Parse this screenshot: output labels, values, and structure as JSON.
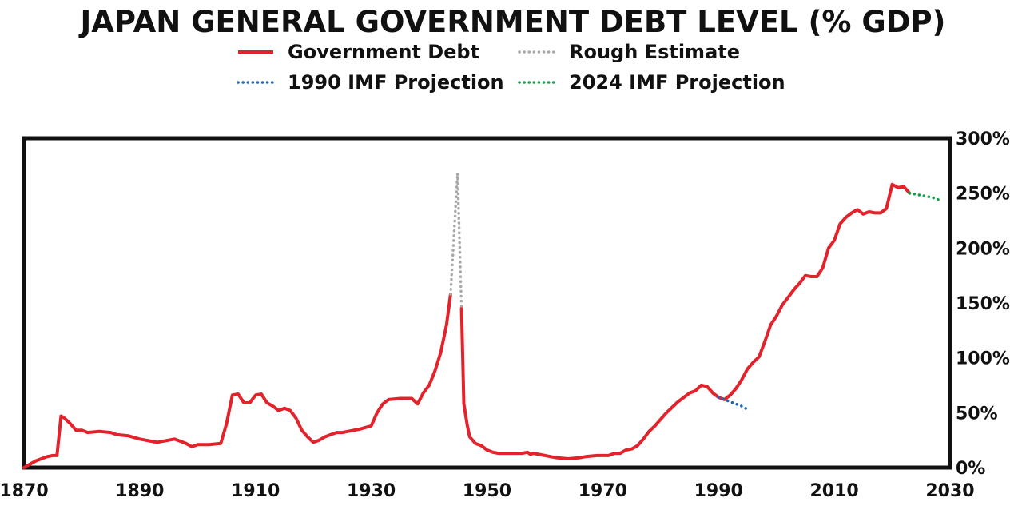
{
  "chart_data": {
    "type": "line",
    "title": "JAPAN GENERAL GOVERNMENT DEBT LEVEL (% GDP)",
    "xlabel": "",
    "ylabel": "",
    "xlim": [
      1870,
      2030
    ],
    "ylim": [
      0,
      300
    ],
    "x_ticks": [
      "1870",
      "1890",
      "1910",
      "1930",
      "1950",
      "1970",
      "1990",
      "2010",
      "2030"
    ],
    "y_ticks": [
      "0%",
      "50%",
      "100%",
      "150%",
      "200%",
      "250%",
      "300%"
    ],
    "y_axis_position": "right",
    "grid": false,
    "legend": [
      {
        "name": "Government Debt",
        "color": "#e3232c",
        "style": "solid"
      },
      {
        "name": "Rough Estimate",
        "color": "#a8a8a8",
        "style": "dotted"
      },
      {
        "name": "1990 IMF Projection",
        "color": "#1f66b5",
        "style": "dotted"
      },
      {
        "name": "2024 IMF Projection",
        "color": "#13a14a",
        "style": "dotted"
      }
    ],
    "series": [
      {
        "name": "Government Debt",
        "color": "#e3232c",
        "style": "solid",
        "segments": [
          [
            [
              1870,
              0
            ],
            [
              1871,
              3
            ],
            [
              1872,
              6
            ],
            [
              1873,
              8
            ],
            [
              1874,
              10
            ],
            [
              1875,
              11
            ],
            [
              1875.7,
              11
            ],
            [
              1876.4,
              47
            ],
            [
              1877,
              45
            ],
            [
              1878,
              40
            ],
            [
              1879,
              34
            ],
            [
              1880,
              34
            ],
            [
              1881,
              32
            ],
            [
              1883,
              33
            ],
            [
              1885,
              32
            ],
            [
              1886,
              30
            ],
            [
              1888,
              29
            ],
            [
              1890,
              26
            ],
            [
              1893,
              23
            ],
            [
              1896,
              26
            ],
            [
              1898,
              22
            ],
            [
              1899,
              19
            ],
            [
              1900,
              21
            ],
            [
              1902,
              21
            ],
            [
              1904,
              22
            ],
            [
              1905,
              40
            ],
            [
              1906,
              66
            ],
            [
              1907,
              67
            ],
            [
              1908,
              59
            ],
            [
              1909,
              59
            ],
            [
              1910,
              66
            ],
            [
              1911,
              67
            ],
            [
              1912,
              59
            ],
            [
              1913,
              56
            ],
            [
              1914,
              52
            ],
            [
              1915,
              54
            ],
            [
              1916,
              52
            ],
            [
              1917,
              45
            ],
            [
              1918,
              34
            ],
            [
              1919,
              28
            ],
            [
              1920,
              23
            ],
            [
              1921,
              25
            ],
            [
              1922,
              28
            ],
            [
              1923,
              30
            ],
            [
              1924,
              32
            ],
            [
              1925,
              32
            ],
            [
              1926,
              33
            ],
            [
              1928,
              35
            ],
            [
              1930,
              38
            ],
            [
              1931,
              50
            ],
            [
              1932,
              58
            ],
            [
              1933,
              62
            ],
            [
              1935,
              63
            ],
            [
              1937,
              63
            ],
            [
              1938,
              58
            ],
            [
              1939,
              68
            ],
            [
              1940,
              75
            ],
            [
              1941,
              88
            ],
            [
              1942,
              105
            ],
            [
              1943,
              130
            ],
            [
              1943.7,
              158
            ]
          ],
          [
            [
              1945.6,
              145
            ],
            [
              1946,
              58
            ],
            [
              1946.6,
              38
            ],
            [
              1947,
              28
            ],
            [
              1948,
              22
            ],
            [
              1949,
              20
            ],
            [
              1950,
              16
            ],
            [
              1951,
              14
            ],
            [
              1952,
              13
            ],
            [
              1954,
              13
            ],
            [
              1956,
              13
            ],
            [
              1957,
              14
            ],
            [
              1957.5,
              12
            ],
            [
              1958,
              13
            ],
            [
              1959,
              12
            ],
            [
              1960,
              11
            ],
            [
              1961,
              10
            ],
            [
              1962,
              9
            ],
            [
              1964,
              8
            ],
            [
              1966,
              9
            ],
            [
              1967,
              10
            ],
            [
              1969,
              11
            ],
            [
              1971,
              11
            ],
            [
              1972,
              13
            ],
            [
              1973,
              13
            ],
            [
              1974,
              16
            ],
            [
              1975,
              17
            ],
            [
              1976,
              20
            ],
            [
              1977,
              26
            ],
            [
              1978,
              33
            ],
            [
              1979,
              38
            ],
            [
              1980,
              44
            ],
            [
              1981,
              50
            ],
            [
              1982,
              55
            ],
            [
              1983,
              60
            ],
            [
              1984,
              64
            ],
            [
              1985,
              68
            ],
            [
              1986,
              70
            ],
            [
              1987,
              75
            ],
            [
              1988,
              74
            ],
            [
              1989,
              68
            ],
            [
              1990,
              64
            ],
            [
              1991,
              62
            ],
            [
              1992,
              66
            ],
            [
              1993,
              72
            ],
            [
              1994,
              80
            ],
            [
              1995,
              90
            ],
            [
              1996,
              96
            ],
            [
              1997,
              101
            ],
            [
              1998,
              115
            ],
            [
              1999,
              130
            ],
            [
              2000,
              138
            ],
            [
              2001,
              148
            ],
            [
              2002,
              155
            ],
            [
              2003,
              162
            ],
            [
              2004,
              168
            ],
            [
              2005,
              175
            ],
            [
              2006,
              174
            ],
            [
              2007,
              174
            ],
            [
              2008,
              182
            ],
            [
              2009,
              200
            ],
            [
              2010,
              207
            ],
            [
              2011,
              222
            ],
            [
              2012,
              228
            ],
            [
              2013,
              232
            ],
            [
              2014,
              235
            ],
            [
              2015,
              231
            ],
            [
              2016,
              233
            ],
            [
              2017,
              232
            ],
            [
              2018,
              232
            ],
            [
              2019,
              236
            ],
            [
              2020,
              258
            ],
            [
              2021,
              255
            ],
            [
              2022,
              256
            ],
            [
              2023,
              250
            ]
          ]
        ]
      },
      {
        "name": "Rough Estimate",
        "color": "#a8a8a8",
        "style": "dotted",
        "segments": [
          [
            [
              1943.7,
              158
            ],
            [
              1944.9,
              268
            ],
            [
              1945.6,
              145
            ]
          ]
        ]
      },
      {
        "name": "1990 IMF Projection",
        "color": "#1f66b5",
        "style": "dotted",
        "segments": [
          [
            [
              1990,
              64
            ],
            [
              1992,
              60
            ],
            [
              1994,
              56
            ],
            [
              1995,
              53
            ]
          ]
        ]
      },
      {
        "name": "2024 IMF Projection",
        "color": "#13a14a",
        "style": "dotted",
        "segments": [
          [
            [
              2023,
              250
            ],
            [
              2025,
              248
            ],
            [
              2026,
              247
            ],
            [
              2027,
              246
            ],
            [
              2028,
              244
            ]
          ]
        ]
      }
    ]
  }
}
